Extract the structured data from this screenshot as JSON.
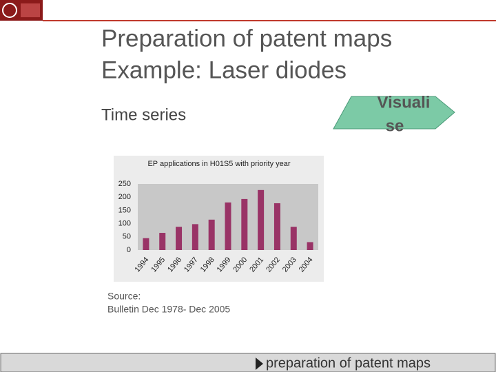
{
  "slide": {
    "title": [
      "Preparation of patent maps",
      "Example: Laser diodes"
    ],
    "subtitle": "Time series",
    "arrow": [
      "Visuali",
      "se"
    ],
    "source": [
      "Source:",
      "Bulletin Dec 1978- Dec 2005"
    ],
    "footer": "preparation of patent maps"
  },
  "chart_data": {
    "type": "bar",
    "title": "EP applications in H01S5 with priority year",
    "categories": [
      "1994",
      "1995",
      "1996",
      "1997",
      "1998",
      "1999",
      "2000",
      "2001",
      "2002",
      "2003",
      "2004"
    ],
    "values": [
      45,
      65,
      88,
      98,
      115,
      180,
      193,
      227,
      177,
      88,
      30
    ],
    "color": "#993366",
    "ylim": [
      0,
      250
    ],
    "yticks": [
      0,
      50,
      100,
      150,
      200,
      250
    ],
    "grid": false
  }
}
